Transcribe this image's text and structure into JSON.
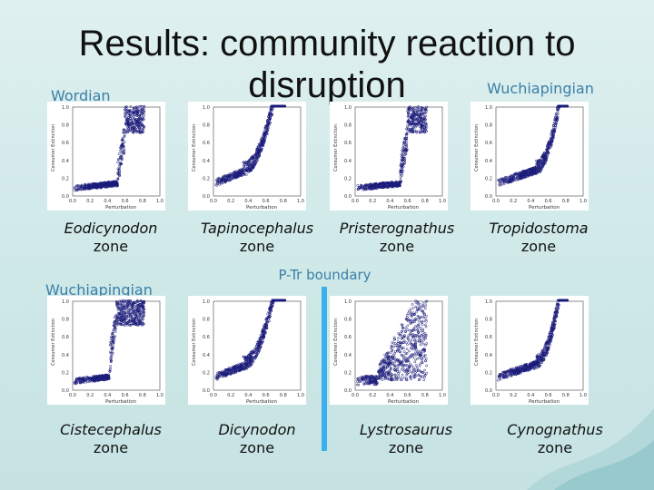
{
  "title_line1": "Results: community reaction to",
  "title_line2": "disruption",
  "periods": {
    "top_left": "Wordian",
    "top_right": "Wuchiapingian",
    "middle_left": "Wuchiapingian"
  },
  "boundary_label": "P-Tr boundary",
  "axis": {
    "xlabel": "Perturbation",
    "ylabel": "Consumer Extinction",
    "yticks": [
      "1.0",
      "0.8",
      "0.6",
      "0.4",
      "0.2",
      "0.0"
    ],
    "xticks": [
      "0.0",
      "0.2",
      "0.4",
      "0.6",
      "0.8",
      "1.0"
    ]
  },
  "panels": [
    {
      "id": "eodicynodon",
      "name": "Eodicynodon",
      "suffix": "zone",
      "shape": "step-late"
    },
    {
      "id": "tapinocephalus",
      "name": "Tapinocephalus",
      "suffix": "zone",
      "shape": "curve-mid"
    },
    {
      "id": "pristerognathus",
      "name": "Pristerognathus",
      "suffix": "zone",
      "shape": "step-late"
    },
    {
      "id": "tropidostoma",
      "name": "Tropidostoma",
      "suffix": "zone",
      "shape": "curve-late"
    },
    {
      "id": "cistecephalus",
      "name": "Cistecephalus",
      "suffix": "zone",
      "shape": "step-early"
    },
    {
      "id": "dicynodon",
      "name": "Dicynodon",
      "suffix": "zone",
      "shape": "curve-mid"
    },
    {
      "id": "lystrosaurus",
      "name": "Lystrosaurus",
      "suffix": "zone",
      "shape": "scatter-wide"
    },
    {
      "id": "cynognathus",
      "name": "Cynognathus",
      "suffix": "zone",
      "shape": "curve-late"
    }
  ],
  "colors": {
    "points": "#1a1a7a",
    "period_text": "#3a7fa6",
    "boundary": "#3ab0ee"
  }
}
